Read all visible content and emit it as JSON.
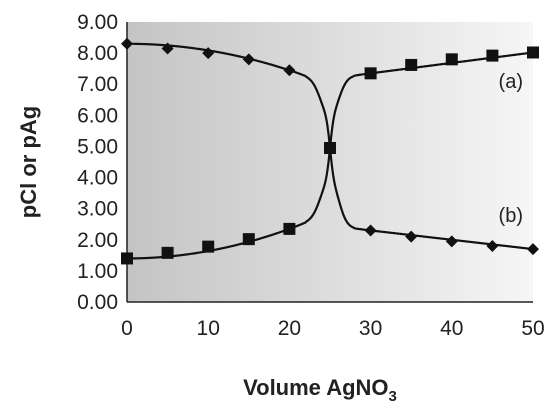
{
  "chart_data": {
    "type": "line",
    "xlabel": "Volume AgNO",
    "xlabel_sub": "3",
    "ylabel": "pCl or pAg",
    "xlim": [
      0,
      50
    ],
    "ylim": [
      0,
      9
    ],
    "xticks": [
      "0",
      "10",
      "20",
      "30",
      "40",
      "50"
    ],
    "yticks": [
      "0.00",
      "1.00",
      "2.00",
      "3.00",
      "4.00",
      "5.00",
      "6.00",
      "7.00",
      "8.00",
      "9.00"
    ],
    "grid": false,
    "background": "horizontal gray gradient",
    "colors": {
      "curve": "#111111",
      "marker": "#111111",
      "background_dark": "#c4c4c4",
      "background_light": "#f6f6f6"
    },
    "series": [
      {
        "name": "(a)",
        "marker": "mixed",
        "points": [
          {
            "x": 0,
            "y": 8.3,
            "marker": "diamond"
          },
          {
            "x": 5,
            "y": 8.15,
            "marker": "diamond"
          },
          {
            "x": 10,
            "y": 8.0,
            "marker": "diamond"
          },
          {
            "x": 15,
            "y": 7.8,
            "marker": "diamond"
          },
          {
            "x": 20,
            "y": 7.45,
            "marker": "diamond"
          },
          {
            "x": 25,
            "y": 4.95,
            "marker": "square"
          },
          {
            "x": 30,
            "y": 7.35,
            "marker": "square"
          },
          {
            "x": 35,
            "y": 7.62,
            "marker": "square"
          },
          {
            "x": 40,
            "y": 7.8,
            "marker": "square"
          },
          {
            "x": 45,
            "y": 7.92,
            "marker": "square"
          },
          {
            "x": 50,
            "y": 8.02,
            "marker": "square"
          }
        ]
      },
      {
        "name": "(b)",
        "marker": "mixed",
        "points": [
          {
            "x": 0,
            "y": 1.4,
            "marker": "square"
          },
          {
            "x": 5,
            "y": 1.58,
            "marker": "square"
          },
          {
            "x": 10,
            "y": 1.78,
            "marker": "square"
          },
          {
            "x": 15,
            "y": 2.02,
            "marker": "square"
          },
          {
            "x": 20,
            "y": 2.35,
            "marker": "square"
          },
          {
            "x": 30,
            "y": 2.3,
            "marker": "diamond"
          },
          {
            "x": 35,
            "y": 2.1,
            "marker": "diamond"
          },
          {
            "x": 40,
            "y": 1.95,
            "marker": "diamond"
          },
          {
            "x": 45,
            "y": 1.8,
            "marker": "diamond"
          },
          {
            "x": 50,
            "y": 1.7,
            "marker": "diamond"
          }
        ]
      }
    ],
    "curve_labels": [
      "(a)",
      "(b)"
    ]
  }
}
